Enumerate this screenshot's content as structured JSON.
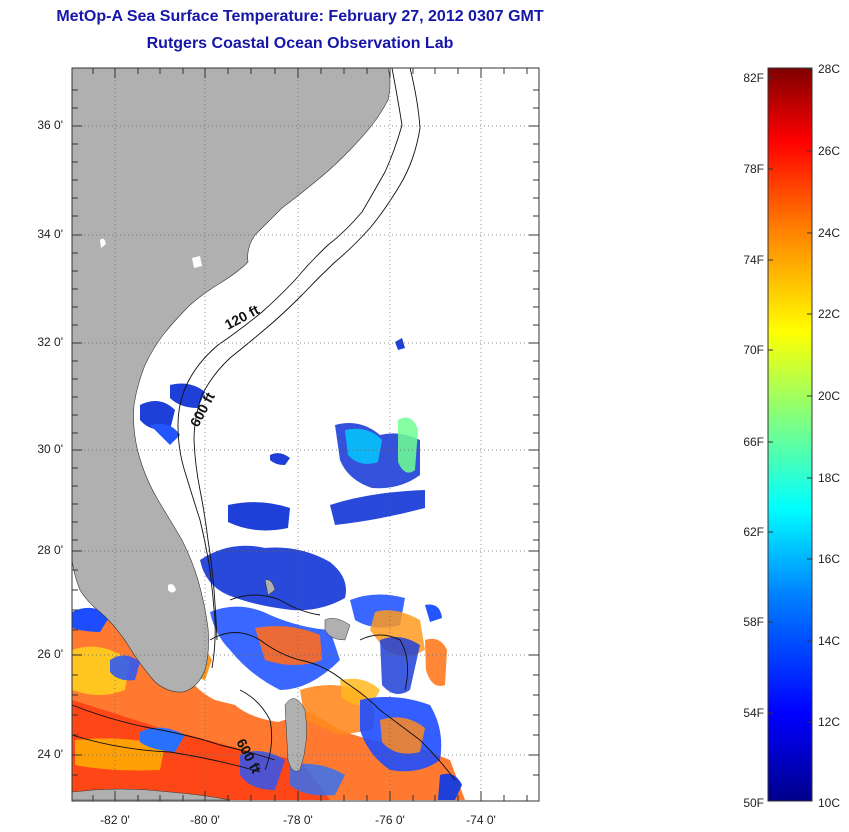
{
  "title": "MetOp-A Sea Surface Temperature:  February 27, 2012 0307 GMT",
  "subtitle": "Rutgers Coastal Ocean Observation Lab",
  "map": {
    "lat_labels": [
      "36 0'",
      "34 0'",
      "32 0'",
      "30 0'",
      "28 0'",
      "26 0'",
      "24 0'"
    ],
    "lon_labels": [
      "-82 0'",
      "-80 0'",
      "-78 0'",
      "-76 0'",
      "-74 0'"
    ],
    "contour_labels": [
      "120 ft",
      "600 ft",
      "600 ft"
    ],
    "land_color": "#b0b0b0"
  },
  "colorbar": {
    "fahrenheit_labels": [
      "82F",
      "78F",
      "74F",
      "70F",
      "66F",
      "62F",
      "58F",
      "54F",
      "50F"
    ],
    "celsius_labels": [
      "28C",
      "26C",
      "24C",
      "22C",
      "20C",
      "18C",
      "16C",
      "14C",
      "12C",
      "10C"
    ],
    "colors": [
      "#00008b",
      "#0000ff",
      "#0080ff",
      "#00ffff",
      "#80ff80",
      "#ffff00",
      "#ff8000",
      "#ff0000",
      "#800000"
    ]
  }
}
